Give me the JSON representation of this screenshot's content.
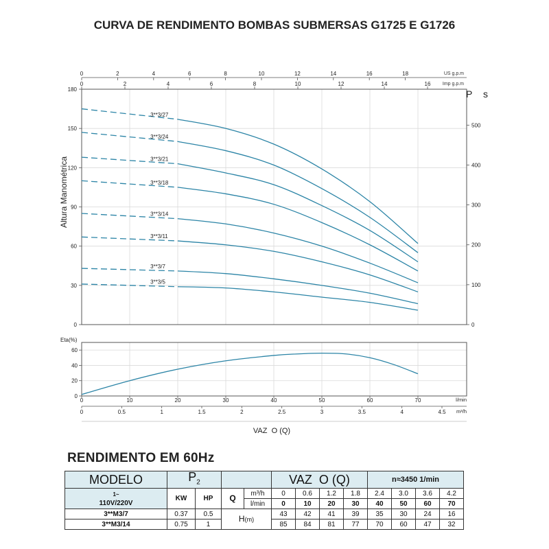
{
  "title": "CURVA DE RENDIMENTO BOMBAS SUBMERSAS G1725 E G1726",
  "chart_data": [
    {
      "type": "line",
      "name": "head-curves",
      "ylabel": "Altura Manométrica",
      "ylabel_right": "P s",
      "top_axis_us_label": "US g.p.m",
      "top_axis_imp_label": "Imp g.p.m",
      "top_axis_us_ticks": [
        0,
        2,
        4,
        6,
        8,
        10,
        12,
        14,
        16,
        18
      ],
      "top_axis_imp_ticks": [
        0,
        2,
        4,
        6,
        8,
        10,
        12,
        14,
        16
      ],
      "ylim": [
        0,
        180
      ],
      "y_ticks": [
        0,
        30,
        60,
        90,
        120,
        150,
        180
      ],
      "y2lim": [
        0,
        590
      ],
      "y2_ticks": [
        0,
        100,
        200,
        300,
        400,
        500
      ],
      "x_unit": "l/min",
      "xlim": [
        0,
        80
      ],
      "series": [
        {
          "name": "3**3/27",
          "dashed_x": [
            0,
            20
          ],
          "dashed_y": [
            165,
            157
          ],
          "x": [
            20,
            30,
            40,
            50,
            60,
            70
          ],
          "y": [
            157,
            150,
            138,
            119,
            94,
            62
          ]
        },
        {
          "name": "3**3/24",
          "dashed_x": [
            0,
            20
          ],
          "dashed_y": [
            147,
            140
          ],
          "x": [
            20,
            30,
            40,
            50,
            60,
            70
          ],
          "y": [
            140,
            133,
            122,
            104,
            82,
            55
          ]
        },
        {
          "name": "3**3/21",
          "dashed_x": [
            0,
            20
          ],
          "dashed_y": [
            128,
            123
          ],
          "x": [
            20,
            30,
            40,
            50,
            60,
            70
          ],
          "y": [
            123,
            116,
            107,
            91,
            72,
            48
          ]
        },
        {
          "name": "3**3/18",
          "dashed_x": [
            0,
            20
          ],
          "dashed_y": [
            110,
            105
          ],
          "x": [
            20,
            30,
            40,
            50,
            60,
            70
          ],
          "y": [
            105,
            100,
            92,
            78,
            61,
            41
          ]
        },
        {
          "name": "3**3/14",
          "dashed_x": [
            0,
            20
          ],
          "dashed_y": [
            85,
            81
          ],
          "x": [
            20,
            30,
            40,
            50,
            60,
            70
          ],
          "y": [
            81,
            77,
            70,
            60,
            47,
            32
          ]
        },
        {
          "name": "3**3/11",
          "dashed_x": [
            0,
            20
          ],
          "dashed_y": [
            67,
            64
          ],
          "x": [
            20,
            30,
            40,
            50,
            60,
            70
          ],
          "y": [
            64,
            61,
            56,
            48,
            38,
            25
          ]
        },
        {
          "name": "3**3/7",
          "dashed_x": [
            0,
            20
          ],
          "dashed_y": [
            43,
            41
          ],
          "x": [
            20,
            30,
            40,
            50,
            60,
            70
          ],
          "y": [
            41,
            39,
            35,
            30,
            24,
            16
          ]
        },
        {
          "name": "3**3/5",
          "dashed_x": [
            0,
            20
          ],
          "dashed_y": [
            31,
            29
          ],
          "x": [
            20,
            30,
            40,
            50,
            60,
            70
          ],
          "y": [
            29,
            28,
            25,
            21,
            17,
            11
          ]
        }
      ]
    },
    {
      "type": "line",
      "name": "efficiency-curve",
      "ylabel": "Eta(%)",
      "ylim": [
        0,
        70
      ],
      "y_ticks": [
        0,
        20,
        40,
        60
      ],
      "x_lmin_label": "l/min",
      "x_lmin_ticks": [
        0,
        10,
        20,
        30,
        40,
        50,
        60,
        70
      ],
      "x_m3h_label": "m³/h",
      "x_m3h_ticks": [
        "0",
        "0.5",
        "1",
        "1.5",
        "2",
        "2.5",
        "3",
        "3.5",
        "4",
        "4.5"
      ],
      "xlabel": "VAZ  O (Q)",
      "xlim": [
        0,
        80
      ],
      "series": [
        {
          "x": [
            0,
            10,
            20,
            30,
            40,
            45,
            50,
            55,
            60,
            65,
            70
          ],
          "y": [
            2,
            20,
            35,
            46,
            53,
            55,
            56,
            55,
            50,
            41,
            29
          ]
        }
      ]
    }
  ],
  "performance": {
    "title": "RENDIMENTO EM 60Hz",
    "modelo": "MODELO",
    "p2_main": "P",
    "p2_sub": "2",
    "vazao": "VAZ  O (Q)",
    "rpm": "n≈3450 1/min",
    "voltage_line1": "1~",
    "voltage_line2": "110V/220V",
    "kw": "KW",
    "hp": "HP",
    "q": "Q",
    "m3h": "m³/h",
    "lmin": "l/min",
    "h_main": "H",
    "h_sub": "(m)",
    "m3h_values": [
      "0",
      "0.6",
      "1.2",
      "1.8",
      "2.4",
      "3.0",
      "3.6",
      "4.2"
    ],
    "lmin_values": [
      "0",
      "10",
      "20",
      "30",
      "40",
      "50",
      "60",
      "70"
    ],
    "rows": [
      {
        "model": "3**M3/7",
        "kw": "0.37",
        "hp": "0.5",
        "h": [
          "43",
          "42",
          "41",
          "39",
          "35",
          "30",
          "24",
          "16"
        ]
      },
      {
        "model": "3**M3/14",
        "kw": "0.75",
        "hp": "1",
        "h": [
          "85",
          "84",
          "81",
          "77",
          "70",
          "60",
          "47",
          "32"
        ]
      }
    ]
  }
}
